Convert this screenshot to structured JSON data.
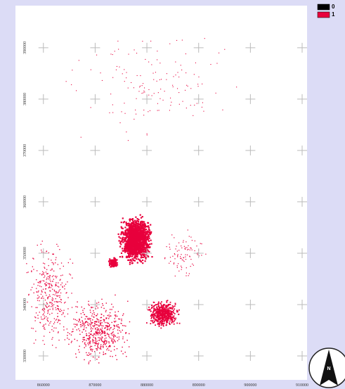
{
  "map": {
    "xticks": [
      860000,
      870000,
      880000,
      890000,
      900000,
      910000
    ],
    "yticks": [
      390000,
      380000,
      370000,
      360000,
      350000,
      340000,
      330000
    ],
    "xlim": [
      854600,
      910950
    ],
    "ylim": [
      325340,
      398200
    ],
    "legend": [
      {
        "label": "0",
        "color": "#000000"
      },
      {
        "label": "1",
        "color": "#e8003c"
      }
    ],
    "north": "N"
  }
}
